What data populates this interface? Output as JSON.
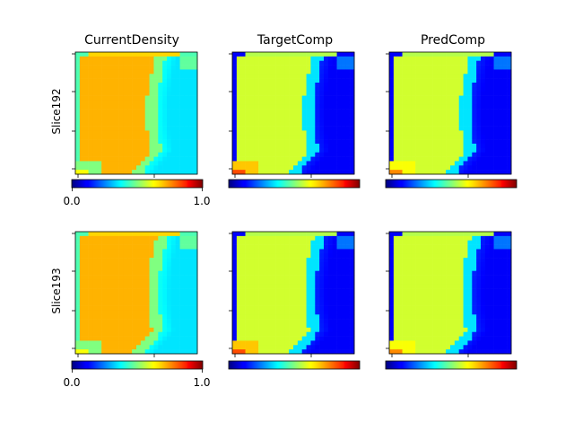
{
  "figure": {
    "column_titles": [
      "CurrentDensity",
      "TargetComp",
      "PredComp"
    ],
    "row_labels": [
      "Slice192",
      "Slice193"
    ],
    "colorbar_tick_labels": [
      "0.0",
      "1.0"
    ],
    "colormap": "jet"
  },
  "chart_data": {
    "type": "heatmap",
    "grid_size": [
      28,
      28
    ],
    "value_range": [
      0,
      1
    ],
    "colormap": "jet",
    "colorbar": {
      "min": 0.0,
      "max": 1.0,
      "ticks": [
        "0.0",
        "1.0"
      ],
      "shown_on_column": 0
    },
    "columns": [
      "CurrentDensity",
      "TargetComp",
      "PredComp"
    ],
    "rows": [
      "Slice192",
      "Slice193"
    ],
    "panel_fields": {
      "CurrentDensity": {
        "interior": 0.7,
        "band": 0.5,
        "outside": 0.35,
        "left_margin": 0.45,
        "corner_low": 0.5
      },
      "TargetComp": {
        "interior": 0.58,
        "band": 0.35,
        "outside": 0.12,
        "left_margin": 0.12,
        "corner_low": 0.68
      },
      "PredComp": {
        "interior": 0.58,
        "band": 0.35,
        "outside": 0.12,
        "left_margin": 0.12,
        "corner_low": 0.62
      }
    }
  }
}
